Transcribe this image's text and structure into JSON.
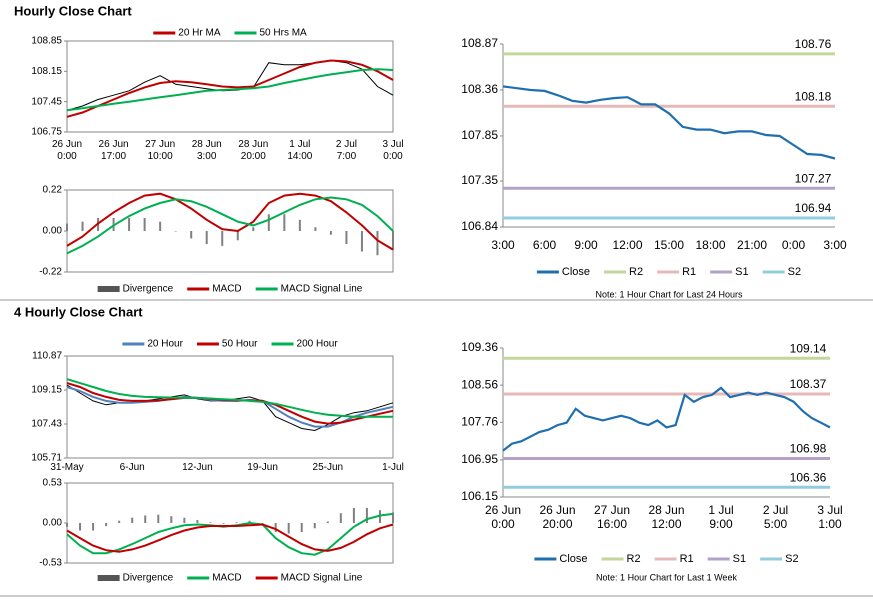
{
  "headings": [
    "Hourly Close Chart",
    "4 Hourly Close Chart"
  ],
  "chart_data": [
    {
      "type": "line",
      "legend": "top",
      "categories": [
        "26 Jun\n0:00",
        null,
        null,
        "26 Jun\n17:00",
        null,
        null,
        "27 Jun\n10:00",
        null,
        null,
        "28 Jun\n3:00",
        null,
        null,
        "28 Jun\n20:00",
        null,
        null,
        "1 Jul\n14:00",
        null,
        null,
        "2 Jul\n7:00",
        null,
        null,
        "3 Jul\n0:00"
      ],
      "ylim": [
        106.75,
        108.85
      ],
      "yticks": [
        106.75,
        107.45,
        108.15,
        108.85
      ],
      "series": [
        {
          "color": "#000000",
          "values": [
            107.25,
            107.35,
            107.5,
            107.6,
            107.7,
            107.9,
            108.05,
            107.85,
            107.8,
            107.75,
            107.7,
            107.72,
            107.78,
            108.35,
            108.3,
            108.3,
            108.35,
            108.4,
            108.35,
            108.2,
            107.8,
            107.6
          ]
        },
        {
          "name": "20 Hr MA",
          "color": "#c00000",
          "values": [
            107.1,
            107.2,
            107.35,
            107.5,
            107.65,
            107.78,
            107.88,
            107.92,
            107.9,
            107.85,
            107.8,
            107.78,
            107.8,
            107.95,
            108.1,
            108.25,
            108.35,
            108.4,
            108.38,
            108.3,
            108.15,
            107.95
          ]
        },
        {
          "name": "50 Hrs MA",
          "color": "#00b050",
          "values": [
            107.25,
            107.3,
            107.35,
            107.4,
            107.45,
            107.5,
            107.55,
            107.6,
            107.65,
            107.7,
            107.72,
            107.74,
            107.76,
            107.8,
            107.88,
            107.95,
            108.02,
            108.08,
            108.13,
            108.18,
            108.2,
            108.18
          ]
        }
      ]
    },
    {
      "type": "combo",
      "legend": "bottom",
      "ylim": [
        -0.22,
        0.22
      ],
      "yticks": [
        -0.22,
        {
          "value": 0,
          "label": "0.00"
        },
        0.22
      ],
      "series": [
        {
          "name": "Divergence",
          "type": "bar",
          "color": "#808080",
          "values": [
            0.04,
            0.05,
            0.07,
            0.07,
            0.07,
            0.07,
            0.05,
            0,
            -0.04,
            -0.07,
            -0.08,
            -0.05,
            0.02,
            0.09,
            0.09,
            0.06,
            0.02,
            -0.02,
            -0.07,
            -0.11,
            -0.13,
            -0.1
          ]
        },
        {
          "name": "MACD",
          "color": "#c00000",
          "values": [
            -0.08,
            -0.03,
            0.04,
            0.1,
            0.15,
            0.19,
            0.2,
            0.17,
            0.12,
            0.06,
            0.01,
            0,
            0.05,
            0.15,
            0.19,
            0.2,
            0.19,
            0.16,
            0.1,
            0.03,
            -0.05,
            -0.1
          ]
        },
        {
          "name": "MACD Signal Line",
          "color": "#00b050",
          "values": [
            -0.12,
            -0.08,
            -0.03,
            0.03,
            0.08,
            0.12,
            0.15,
            0.17,
            0.16,
            0.13,
            0.09,
            0.05,
            0.03,
            0.06,
            0.1,
            0.14,
            0.17,
            0.18,
            0.17,
            0.14,
            0.08,
            0
          ]
        }
      ]
    },
    {
      "type": "line",
      "legend": "bottom",
      "note": "Note: 1 Hour Chart for Last 24 Hours",
      "categories": [
        "3:00",
        null,
        null,
        "6:00",
        null,
        null,
        "9:00",
        null,
        null,
        "12:00",
        null,
        null,
        "15:00",
        null,
        null,
        "18:00",
        null,
        null,
        "21:00",
        null,
        null,
        "0:00",
        null,
        null,
        "3:00"
      ],
      "ylim": [
        106.84,
        108.87
      ],
      "yticks": [
        106.84,
        107.35,
        107.85,
        108.36,
        108.87
      ],
      "series": [
        {
          "name": "Close",
          "color": "#1f6fb0",
          "values": [
            108.4,
            108.38,
            108.36,
            108.35,
            108.3,
            108.24,
            108.22,
            108.25,
            108.27,
            108.28,
            108.2,
            108.2,
            108.1,
            107.95,
            107.92,
            107.92,
            107.88,
            107.9,
            107.9,
            107.86,
            107.85,
            107.75,
            107.65,
            107.64,
            107.6
          ]
        }
      ],
      "levels": [
        {
          "name": "R2",
          "color": "#c3d69b",
          "value": 108.76
        },
        {
          "name": "R1",
          "color": "#e6b9b8",
          "value": 108.18
        },
        {
          "name": "S1",
          "color": "#b3a2c7",
          "value": 107.27
        },
        {
          "name": "S2",
          "color": "#93cddd",
          "value": 106.94
        }
      ]
    },
    {
      "type": "line",
      "legend": "top",
      "categories": [
        "31-May",
        null,
        null,
        null,
        null,
        "6-Jun",
        null,
        null,
        null,
        null,
        "12-Jun",
        null,
        null,
        null,
        null,
        "19-Jun",
        null,
        null,
        null,
        null,
        "25-Jun",
        null,
        null,
        null,
        null,
        "1-Jul"
      ],
      "ylim": [
        105.71,
        110.87
      ],
      "yticks": [
        105.71,
        107.43,
        109.15,
        110.87
      ],
      "series": [
        {
          "color": "#000000",
          "values": [
            109.4,
            109.0,
            108.6,
            108.4,
            108.5,
            108.5,
            108.6,
            108.7,
            108.8,
            108.9,
            108.7,
            108.6,
            108.6,
            108.7,
            108.8,
            108.6,
            107.8,
            107.5,
            107.2,
            107.1,
            107.4,
            107.8,
            108.0,
            108.1,
            108.3,
            108.5
          ]
        },
        {
          "name": "20 Hour",
          "color": "#4f81bd",
          "values": [
            109.3,
            109.1,
            108.8,
            108.6,
            108.5,
            108.5,
            108.55,
            108.6,
            108.7,
            108.8,
            108.75,
            108.65,
            108.6,
            108.6,
            108.65,
            108.6,
            108.2,
            107.8,
            107.5,
            107.3,
            107.3,
            107.5,
            107.8,
            108.0,
            108.15,
            108.3
          ]
        },
        {
          "name": "50 Hour",
          "color": "#c00000",
          "values": [
            109.5,
            109.3,
            109.0,
            108.8,
            108.65,
            108.6,
            108.6,
            108.62,
            108.68,
            108.75,
            108.75,
            108.7,
            108.65,
            108.62,
            108.62,
            108.6,
            108.4,
            108.1,
            107.8,
            107.55,
            107.45,
            107.5,
            107.65,
            107.8,
            107.95,
            108.1
          ]
        },
        {
          "name": "200 Hour",
          "color": "#00b050",
          "values": [
            109.7,
            109.5,
            109.3,
            109.1,
            108.95,
            108.85,
            108.8,
            108.78,
            108.77,
            108.76,
            108.75,
            108.72,
            108.68,
            108.65,
            108.6,
            108.55,
            108.45,
            108.3,
            108.15,
            108.0,
            107.9,
            107.85,
            107.8,
            107.8,
            107.8,
            107.8
          ]
        }
      ]
    },
    {
      "type": "combo",
      "legend": "bottom",
      "ylim": [
        -0.53,
        0.53
      ],
      "yticks": [
        -0.53,
        {
          "value": 0,
          "label": "0.00"
        },
        0.53
      ],
      "series": [
        {
          "name": "Divergence",
          "type": "bar",
          "color": "#808080",
          "values": [
            -0.05,
            -0.1,
            -0.1,
            -0.04,
            0.03,
            0.07,
            0.1,
            0.11,
            0.09,
            0.07,
            0.04,
            0.01,
            -0.01,
            0.01,
            0.03,
            0,
            -0.12,
            -0.14,
            -0.12,
            -0.07,
            0.02,
            0.13,
            0.2,
            0.2,
            0.17,
            0.14
          ]
        },
        {
          "name": "MACD",
          "color": "#00b050",
          "values": [
            -0.15,
            -0.3,
            -0.4,
            -0.4,
            -0.35,
            -0.28,
            -0.2,
            -0.12,
            -0.07,
            -0.03,
            -0.02,
            -0.03,
            -0.05,
            -0.03,
            0,
            -0.02,
            -0.2,
            -0.32,
            -0.4,
            -0.42,
            -0.35,
            -0.2,
            -0.05,
            0.05,
            0.1,
            0.12
          ]
        },
        {
          "name": "MACD Signal Line",
          "color": "#c00000",
          "values": [
            -0.1,
            -0.2,
            -0.3,
            -0.36,
            -0.38,
            -0.35,
            -0.3,
            -0.23,
            -0.16,
            -0.1,
            -0.06,
            -0.04,
            -0.04,
            -0.04,
            -0.03,
            -0.02,
            -0.08,
            -0.18,
            -0.28,
            -0.35,
            -0.37,
            -0.33,
            -0.25,
            -0.15,
            -0.07,
            -0.02
          ]
        }
      ]
    },
    {
      "type": "line",
      "legend": "bottom",
      "note": "Note: 1 Hour Chart for Last 1 Week",
      "categories": [
        "26 Jun\n0:00",
        null,
        null,
        null,
        null,
        null,
        "26 Jun\n20:00",
        null,
        null,
        null,
        null,
        null,
        "27 Jun\n16:00",
        null,
        null,
        null,
        null,
        null,
        "28 Jun\n12:00",
        null,
        null,
        null,
        null,
        null,
        "1 Jul\n9:00",
        null,
        null,
        null,
        null,
        null,
        "2 Jul\n5:00",
        null,
        null,
        null,
        null,
        null,
        "3 Jul\n1:00"
      ],
      "ylim": [
        106.15,
        109.36
      ],
      "yticks": [
        106.15,
        106.95,
        107.76,
        108.56,
        109.36
      ],
      "series": [
        {
          "name": "Close",
          "color": "#1f6fb0",
          "values": [
            107.15,
            107.3,
            107.35,
            107.45,
            107.55,
            107.6,
            107.7,
            107.75,
            108.05,
            107.9,
            107.85,
            107.8,
            107.85,
            107.9,
            107.85,
            107.75,
            107.7,
            107.8,
            107.65,
            107.7,
            108.35,
            108.2,
            108.3,
            108.35,
            108.5,
            108.3,
            108.35,
            108.4,
            108.35,
            108.4,
            108.35,
            108.3,
            108.2,
            108.0,
            107.85,
            107.75,
            107.65
          ]
        }
      ],
      "levels": [
        {
          "name": "R2",
          "color": "#c3d69b",
          "value": 109.14
        },
        {
          "name": "R1",
          "color": "#e6b9b8",
          "value": 108.37
        },
        {
          "name": "S1",
          "color": "#b3a2c7",
          "value": 106.98
        },
        {
          "name": "S2",
          "color": "#93cddd",
          "value": 106.36
        }
      ]
    }
  ]
}
